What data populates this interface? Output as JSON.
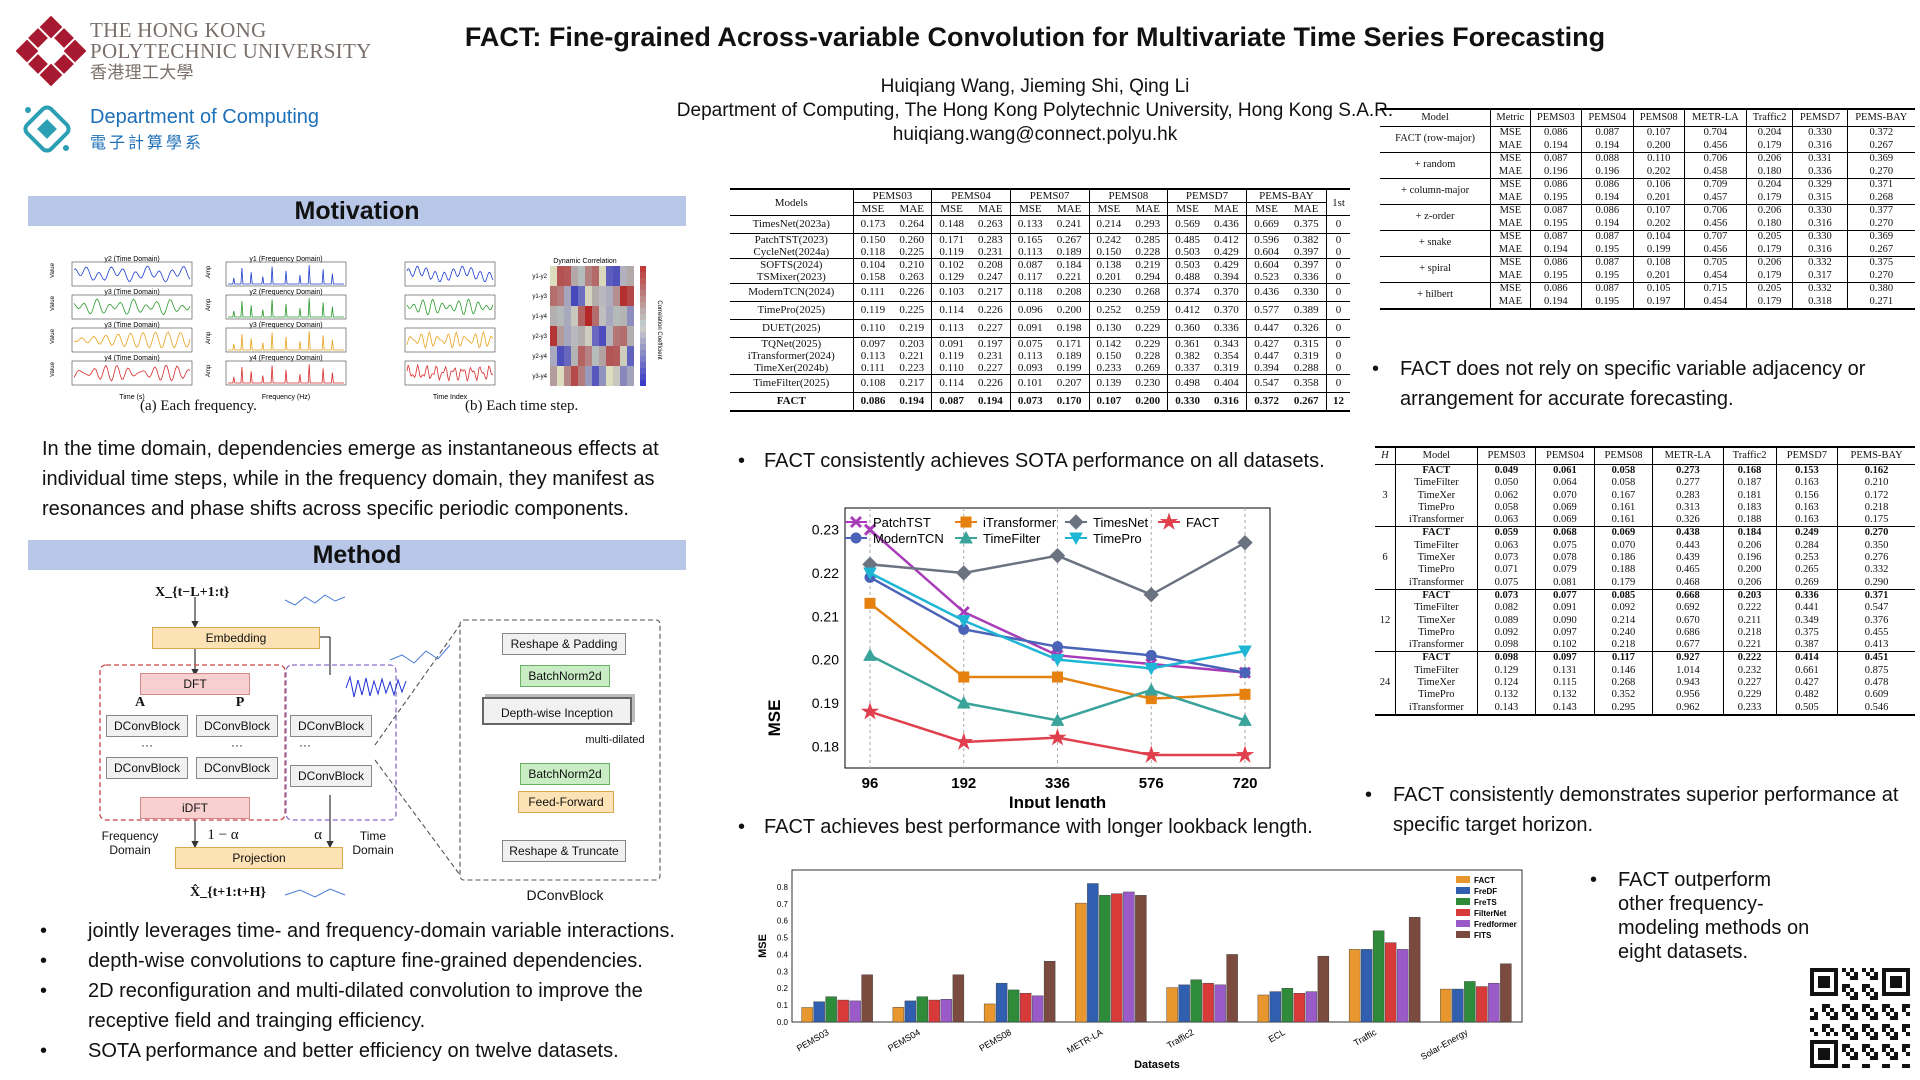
{
  "header": {
    "title": "FACT: Fine-grained Across-variable Convolution for Multivariate Time Series Forecasting",
    "authors": "Huiqiang Wang, Jieming Shi, Qing Li",
    "affiliation": "Department of Computing, The Hong Kong Polytechnic University, Hong Kong S.A.R.",
    "email": "huiqiang.wang@connect.polyu.hk",
    "logo1": {
      "line1": "THE HONG KONG",
      "line2": "POLYTECHNIC UNIVERSITY",
      "line3": "香港理工大學"
    },
    "logo2": {
      "line1": "Department of Computing",
      "line2": "電子計算學系"
    }
  },
  "colors": {
    "accent": "#b8c6e8",
    "polyu_red": "#a71930",
    "comp_blue": "#1d6fb8"
  },
  "motivation": {
    "title": "Motivation",
    "caption_a": "(a) Each frequency.",
    "caption_b": "(b) Each time step.",
    "time_titles": [
      "y2 (Time Domain)",
      "y3 (Time Domain)",
      "y3 (Time Domain)",
      "y4 (Time Domain)"
    ],
    "freq_titles": [
      "y1 (Frequency Domain)",
      "y2 (Frequency Domain)",
      "y3 (Frequency Domain)",
      "y4 (Frequency Domain)"
    ],
    "time_xlabel": "Time (s)",
    "freq_xlabel": "Frequency (Hz)",
    "value_label": "Value",
    "amp_label": "Amp",
    "heat_title": "Dynamic Correlation",
    "heat_xlabel": "Time Index",
    "heat_cbar": "Correlation Coefficient",
    "pair_labels": [
      "y1-y2",
      "y1-y3",
      "y1-y4",
      "y2-y3",
      "y2-y4",
      "y3-y4"
    ],
    "text": "In the time domain, dependencies emerge as instantaneous effects at individual time steps, while in the frequency domain, they manifest as resonances and phase shifts across specific periodic components."
  },
  "method": {
    "title": "Method",
    "input": "X_{t−L+1:t}",
    "embedding": "Embedding",
    "dft": "DFT",
    "idft": "iDFT",
    "dconv": "DConvBlock",
    "dots": "···",
    "a": "A",
    "p": "P",
    "one_minus_alpha": "1 − α",
    "alpha": "α",
    "freq_domain": "Frequency Domain",
    "time_domain": "Time Domain",
    "projection": "Projection",
    "output": "X̂_{t+1:t+H}",
    "block": {
      "reshape_pad": "Reshape & Padding",
      "bn1": "BatchNorm2d",
      "inception": "Depth-wise Inception",
      "multi": "multi-dilated",
      "bn2": "BatchNorm2d",
      "ff": "Feed-Forward",
      "reshape_trunc": "Reshape & Truncate",
      "name": "DConvBlock"
    },
    "bullets": [
      "jointly leverages time- and frequency-domain variable interactions.",
      "depth-wise convolutions to capture fine-grained dependencies.",
      "2D reconfiguration and multi-dilated convolution to improve the receptive field and trainging efficiency.",
      "SOTA performance and better efficiency on twelve datasets."
    ]
  },
  "main_table": {
    "models_header": "Models",
    "datasets": [
      "PEMS03",
      "PEMS04",
      "PEMS07",
      "PEMS08",
      "PEMSD7",
      "PEMS-BAY"
    ],
    "first_header": "1st",
    "sub": [
      "MSE",
      "MAE"
    ],
    "groups": [
      [
        [
          "TimesNet(2023a)",
          "0.173",
          "0.264",
          "0.148",
          "0.263",
          "0.133",
          "0.241",
          "0.214",
          "0.293",
          "0.569",
          "0.436",
          "0.669",
          "0.375",
          "0"
        ]
      ],
      [
        [
          "PatchTST(2023)",
          "0.150",
          "0.260",
          "0.171",
          "0.283",
          "0.165",
          "0.267",
          "0.242",
          "0.285",
          "0.485",
          "0.412",
          "0.596",
          "0.382",
          "0"
        ],
        [
          "CycleNet(2024a)",
          "0.118",
          "0.225",
          "0.119",
          "0.231",
          "0.113",
          "0.189",
          "0.150",
          "0.228",
          "0.503",
          "0.429",
          "0.604",
          "0.397",
          "0"
        ]
      ],
      [
        [
          "SOFTS(2024)",
          "0.104",
          "0.210",
          "0.102",
          "0.208",
          "0.087",
          "0.184",
          "0.138",
          "0.219",
          "0.503",
          "0.429",
          "0.604",
          "0.397",
          "0"
        ],
        [
          "TSMixer(2023)",
          "0.158",
          "0.263",
          "0.129",
          "0.247",
          "0.117",
          "0.221",
          "0.201",
          "0.294",
          "0.488",
          "0.394",
          "0.523",
          "0.336",
          "0"
        ]
      ],
      [
        [
          "ModernTCN(2024)",
          "0.111",
          "0.226",
          "0.103",
          "0.217",
          "0.118",
          "0.208",
          "0.230",
          "0.268",
          "0.374",
          "0.370",
          "0.436",
          "0.330",
          "0"
        ]
      ],
      [
        [
          "TimePro(2025)",
          "0.119",
          "0.225",
          "0.114",
          "0.226",
          "0.096",
          "0.200",
          "0.252",
          "0.259",
          "0.412",
          "0.370",
          "0.577",
          "0.389",
          "0"
        ]
      ],
      [
        [
          "DUET(2025)",
          "0.110",
          "0.219",
          "0.113",
          "0.227",
          "0.091",
          "0.198",
          "0.130",
          "0.229",
          "0.360",
          "0.336",
          "0.447",
          "0.326",
          "0"
        ]
      ],
      [
        [
          "TQNet(2025)",
          "0.097",
          "0.203",
          "0.091",
          "0.197",
          "0.075",
          "0.171",
          "0.142",
          "0.229",
          "0.361",
          "0.343",
          "0.427",
          "0.315",
          "0"
        ],
        [
          "iTransformer(2024)",
          "0.113",
          "0.221",
          "0.119",
          "0.231",
          "0.113",
          "0.189",
          "0.150",
          "0.228",
          "0.382",
          "0.354",
          "0.447",
          "0.319",
          "0"
        ],
        [
          "TimeXer(2024b)",
          "0.111",
          "0.223",
          "0.110",
          "0.227",
          "0.093",
          "0.199",
          "0.233",
          "0.269",
          "0.337",
          "0.319",
          "0.394",
          "0.288",
          "0"
        ]
      ],
      [
        [
          "TimeFilter(2025)",
          "0.108",
          "0.217",
          "0.114",
          "0.226",
          "0.101",
          "0.207",
          "0.139",
          "0.230",
          "0.498",
          "0.404",
          "0.547",
          "0.358",
          "0"
        ]
      ],
      [
        [
          "FACT",
          "0.086",
          "0.194",
          "0.087",
          "0.194",
          "0.073",
          "0.170",
          "0.107",
          "0.200",
          "0.330",
          "0.316",
          "0.372",
          "0.267",
          "12"
        ]
      ]
    ],
    "bullet": "FACT consistently achieves SOTA performance on all datasets."
  },
  "line_chart": {
    "bullet": "FACT achieves best performance with longer lookback length."
  },
  "chart_data": [
    {
      "type": "line",
      "title": "",
      "xlabel": "Input length",
      "ylabel": "MSE",
      "x": [
        96,
        192,
        336,
        576,
        720
      ],
      "ylim": [
        0.175,
        0.235
      ],
      "yticks": [
        0.18,
        0.19,
        0.2,
        0.21,
        0.22,
        0.23
      ],
      "series": [
        {
          "name": "PatchTST",
          "color": "#a83cb8",
          "marker": "x",
          "values": [
            0.23,
            0.211,
            0.201,
            0.199,
            0.197
          ]
        },
        {
          "name": "ModernTCN",
          "color": "#4a63b8",
          "marker": "o",
          "values": [
            0.219,
            0.207,
            0.203,
            0.201,
            0.197
          ]
        },
        {
          "name": "iTransformer",
          "color": "#e6810f",
          "marker": "s",
          "values": [
            0.213,
            0.196,
            0.196,
            0.191,
            0.192
          ]
        },
        {
          "name": "TimeFilter",
          "color": "#3aa39a",
          "marker": "^",
          "values": [
            0.201,
            0.19,
            0.186,
            0.193,
            0.186
          ]
        },
        {
          "name": "TimesNet",
          "color": "#6b7280",
          "marker": "D",
          "values": [
            0.222,
            0.22,
            0.224,
            0.215,
            0.227
          ]
        },
        {
          "name": "TimePro",
          "color": "#1fb6d6",
          "marker": "v",
          "values": [
            0.22,
            0.209,
            0.2,
            0.198,
            0.202
          ]
        },
        {
          "name": "FACT",
          "color": "#e0404e",
          "marker": "*",
          "values": [
            0.188,
            0.181,
            0.182,
            0.178,
            0.178
          ]
        }
      ]
    },
    {
      "type": "bar",
      "title": "",
      "xlabel": "Datasets",
      "ylabel": "MSE",
      "ylim": [
        0,
        0.9
      ],
      "yticks": [
        0.0,
        0.1,
        0.2,
        0.3,
        0.4,
        0.5,
        0.6,
        0.7,
        0.8
      ],
      "categories": [
        "PEMS03",
        "PEMS04",
        "PEMS08",
        "METR-LA",
        "Traffic2",
        "ECL",
        "Traffic",
        "Solar-Energy"
      ],
      "series": [
        {
          "name": "FACT",
          "color": "#e8962e",
          "values": [
            0.086,
            0.087,
            0.107,
            0.704,
            0.204,
            0.16,
            0.43,
            0.195
          ]
        },
        {
          "name": "FreDF",
          "color": "#2f5fae",
          "values": [
            0.12,
            0.125,
            0.23,
            0.82,
            0.22,
            0.18,
            0.43,
            0.195
          ]
        },
        {
          "name": "FreTS",
          "color": "#2e8b3a",
          "values": [
            0.15,
            0.15,
            0.19,
            0.75,
            0.25,
            0.2,
            0.54,
            0.24
          ]
        },
        {
          "name": "FilterNet",
          "color": "#d83a3a",
          "values": [
            0.13,
            0.13,
            0.17,
            0.76,
            0.23,
            0.17,
            0.47,
            0.21
          ]
        },
        {
          "name": "Fredformer",
          "color": "#9a5ac8",
          "values": [
            0.125,
            0.135,
            0.155,
            0.77,
            0.22,
            0.18,
            0.43,
            0.23
          ]
        },
        {
          "name": "FITS",
          "color": "#7a4b3e",
          "values": [
            0.28,
            0.28,
            0.36,
            0.75,
            0.4,
            0.39,
            0.62,
            0.345
          ]
        }
      ]
    }
  ],
  "bar_chart": {
    "bullet": "FACT outperform other frequency-modeling methods on eight datasets."
  },
  "arrange_table": {
    "header": [
      "Model",
      "Metric",
      "PEMS03",
      "PEMS04",
      "PEMS08",
      "METR-LA",
      "Traffic2",
      "PEMSD7",
      "PEMS-BAY"
    ],
    "rows": [
      [
        "FACT (row-major)",
        "MSE",
        "0.086",
        "0.087",
        "0.107",
        "0.704",
        "0.204",
        "0.330",
        "0.372"
      ],
      [
        "",
        "MAE",
        "0.194",
        "0.194",
        "0.200",
        "0.456",
        "0.179",
        "0.316",
        "0.267"
      ],
      [
        "+ random",
        "MSE",
        "0.087",
        "0.088",
        "0.110",
        "0.706",
        "0.206",
        "0.331",
        "0.369"
      ],
      [
        "",
        "MAE",
        "0.196",
        "0.196",
        "0.202",
        "0.458",
        "0.180",
        "0.336",
        "0.270"
      ],
      [
        "+ column-major",
        "MSE",
        "0.086",
        "0.086",
        "0.106",
        "0.709",
        "0.204",
        "0.329",
        "0.371"
      ],
      [
        "",
        "MAE",
        "0.195",
        "0.194",
        "0.201",
        "0.457",
        "0.179",
        "0.315",
        "0.268"
      ],
      [
        "+ z-order",
        "MSE",
        "0.087",
        "0.086",
        "0.107",
        "0.706",
        "0.206",
        "0.330",
        "0.377"
      ],
      [
        "",
        "MAE",
        "0.195",
        "0.194",
        "0.202",
        "0.456",
        "0.180",
        "0.316",
        "0.270"
      ],
      [
        "+ snake",
        "MSE",
        "0.087",
        "0.087",
        "0.104",
        "0.707",
        "0.205",
        "0.330",
        "0.369"
      ],
      [
        "",
        "MAE",
        "0.194",
        "0.195",
        "0.199",
        "0.456",
        "0.179",
        "0.316",
        "0.267"
      ],
      [
        "+ spiral",
        "MSE",
        "0.086",
        "0.087",
        "0.108",
        "0.705",
        "0.206",
        "0.332",
        "0.375"
      ],
      [
        "",
        "MAE",
        "0.195",
        "0.195",
        "0.201",
        "0.454",
        "0.179",
        "0.317",
        "0.270"
      ],
      [
        "+ hilbert",
        "MSE",
        "0.086",
        "0.087",
        "0.105",
        "0.715",
        "0.205",
        "0.332",
        "0.380"
      ],
      [
        "",
        "MAE",
        "0.194",
        "0.195",
        "0.197",
        "0.454",
        "0.179",
        "0.318",
        "0.271"
      ]
    ],
    "bullet": "FACT does not rely on specific variable adjacency or arrangement for accurate forecasting."
  },
  "horizon_table": {
    "header": [
      "H",
      "Model",
      "PEMS03",
      "PEMS04",
      "PEMS08",
      "METR-LA",
      "Traffic2",
      "PEMSD7",
      "PEMS-BAY"
    ],
    "groups": [
      {
        "h": "3",
        "rows": [
          [
            "FACT",
            "0.049",
            "0.061",
            "0.058",
            "0.273",
            "0.168",
            "0.153",
            "0.162"
          ],
          [
            "TimeFilter",
            "0.050",
            "0.064",
            "0.058",
            "0.277",
            "0.187",
            "0.163",
            "0.210"
          ],
          [
            "TimeXer",
            "0.062",
            "0.070",
            "0.167",
            "0.283",
            "0.181",
            "0.156",
            "0.172"
          ],
          [
            "TimePro",
            "0.058",
            "0.069",
            "0.161",
            "0.313",
            "0.183",
            "0.163",
            "0.218"
          ],
          [
            "iTransformer",
            "0.063",
            "0.069",
            "0.161",
            "0.326",
            "0.188",
            "0.163",
            "0.175"
          ]
        ]
      },
      {
        "h": "6",
        "rows": [
          [
            "FACT",
            "0.059",
            "0.068",
            "0.069",
            "0.438",
            "0.184",
            "0.249",
            "0.270"
          ],
          [
            "TimeFilter",
            "0.063",
            "0.075",
            "0.070",
            "0.443",
            "0.206",
            "0.284",
            "0.350"
          ],
          [
            "TimeXer",
            "0.073",
            "0.078",
            "0.186",
            "0.439",
            "0.196",
            "0.253",
            "0.276"
          ],
          [
            "TimePro",
            "0.071",
            "0.079",
            "0.188",
            "0.465",
            "0.200",
            "0.265",
            "0.332"
          ],
          [
            "iTransformer",
            "0.075",
            "0.081",
            "0.179",
            "0.468",
            "0.206",
            "0.269",
            "0.290"
          ]
        ]
      },
      {
        "h": "12",
        "rows": [
          [
            "FACT",
            "0.073",
            "0.077",
            "0.085",
            "0.668",
            "0.203",
            "0.336",
            "0.371"
          ],
          [
            "TimeFilter",
            "0.082",
            "0.091",
            "0.092",
            "0.692",
            "0.222",
            "0.441",
            "0.547"
          ],
          [
            "TimeXer",
            "0.089",
            "0.090",
            "0.214",
            "0.670",
            "0.211",
            "0.349",
            "0.376"
          ],
          [
            "TimePro",
            "0.092",
            "0.097",
            "0.240",
            "0.686",
            "0.218",
            "0.375",
            "0.455"
          ],
          [
            "iTransformer",
            "0.098",
            "0.102",
            "0.218",
            "0.677",
            "0.221",
            "0.387",
            "0.413"
          ]
        ]
      },
      {
        "h": "24",
        "rows": [
          [
            "FACT",
            "0.098",
            "0.097",
            "0.117",
            "0.927",
            "0.222",
            "0.414",
            "0.451"
          ],
          [
            "TimeFilter",
            "0.129",
            "0.131",
            "0.146",
            "1.014",
            "0.232",
            "0.661",
            "0.875"
          ],
          [
            "TimeXer",
            "0.124",
            "0.115",
            "0.268",
            "0.943",
            "0.227",
            "0.427",
            "0.478"
          ],
          [
            "TimePro",
            "0.132",
            "0.132",
            "0.352",
            "0.956",
            "0.229",
            "0.482",
            "0.609"
          ],
          [
            "iTransformer",
            "0.143",
            "0.143",
            "0.295",
            "0.962",
            "0.233",
            "0.505",
            "0.546"
          ]
        ]
      }
    ],
    "bullet": "FACT consistently demonstrates superior performance at specific target horizon."
  }
}
